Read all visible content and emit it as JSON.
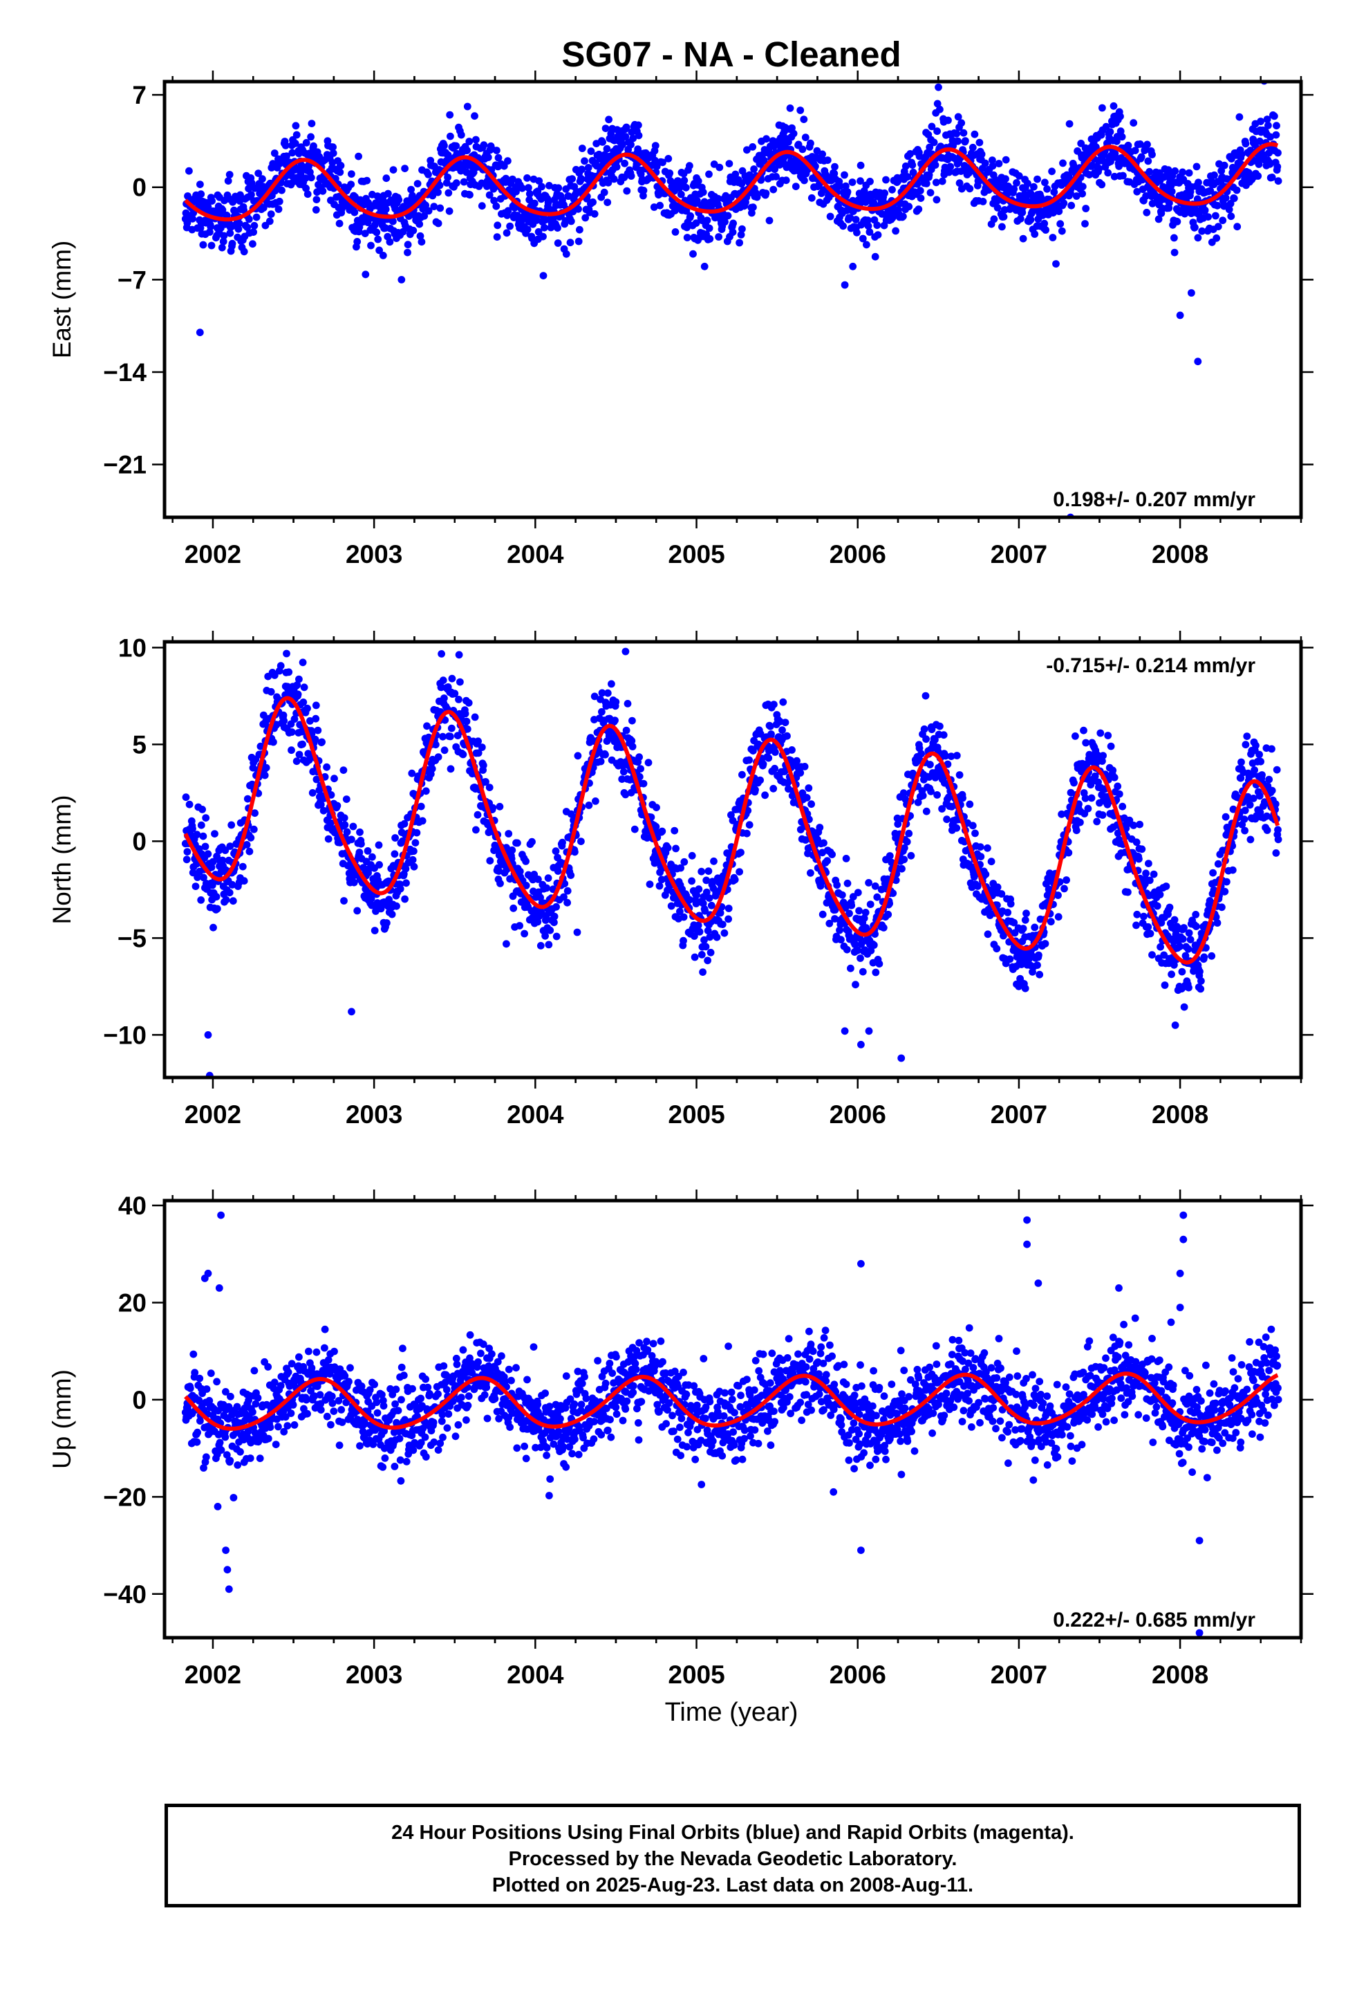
{
  "chart_data": {
    "type": "scatter",
    "title": "SG07  - NA - Cleaned",
    "xlabel": "Time (year)",
    "xlim": [
      2001.7,
      2008.75
    ],
    "xticks": [
      2002,
      2003,
      2004,
      2005,
      2006,
      2007,
      2008
    ],
    "series_colors": {
      "final_orbits": "#0000ff",
      "rapid_orbits": "#ff00ff",
      "model_fit": "#ff0000"
    },
    "data_span": [
      2001.83,
      2008.61
    ],
    "panels": [
      {
        "name": "east",
        "ylabel": "East (mm)",
        "ylim": [
          -25.0,
          8.0
        ],
        "yticks": [
          7,
          0,
          -7,
          -14,
          -21
        ],
        "rate_label": "0.198+/- 0.207 mm/yr",
        "rate_position": "bottom-right",
        "model": {
          "offset": 0.1,
          "trend": 0.198,
          "annual_amp": 2.2,
          "annual_peak": 0.57,
          "semiannual_amp": 0.3,
          "semiannual_peak": 0.55
        },
        "noise_sd": 1.3,
        "outliers": [
          [
            2001.92,
            -11.0
          ],
          [
            2003.17,
            -7.0
          ],
          [
            2004.05,
            -6.7
          ],
          [
            2005.05,
            -6.0
          ],
          [
            2005.92,
            -7.4
          ],
          [
            2005.97,
            -6.0
          ],
          [
            2007.23,
            -5.8
          ],
          [
            2007.32,
            -25.0
          ],
          [
            2008.0,
            -9.7
          ],
          [
            2008.07,
            -8.0
          ],
          [
            2008.11,
            -13.2
          ]
        ]
      },
      {
        "name": "north",
        "ylabel": "North (mm)",
        "ylim": [
          -12.2,
          10.3
        ],
        "yticks": [
          10,
          5,
          0,
          -5,
          -10
        ],
        "rate_label": "-0.715+/- 0.214 mm/yr",
        "rate_position": "top-right",
        "model": {
          "offset": 0.2,
          "trend": -0.715,
          "annual_amp": 4.7,
          "annual_peak": 0.49,
          "semiannual_amp": 0.7,
          "semiannual_peak": 0.42
        },
        "noise_sd": 1.1,
        "outliers": [
          [
            2001.97,
            -10.0
          ],
          [
            2001.98,
            -12.1
          ],
          [
            2002.86,
            -8.8
          ],
          [
            2003.82,
            -5.3
          ],
          [
            2004.26,
            -4.7
          ],
          [
            2004.56,
            9.8
          ],
          [
            2005.92,
            -9.8
          ],
          [
            2006.02,
            -10.5
          ],
          [
            2006.07,
            -9.8
          ],
          [
            2006.27,
            -11.2
          ],
          [
            2007.04,
            -7.6
          ],
          [
            2007.97,
            -9.5
          ]
        ]
      },
      {
        "name": "up",
        "ylabel": "Up (mm)",
        "ylim": [
          -49.0,
          41.0
        ],
        "yticks": [
          40,
          20,
          0,
          -20,
          -40
        ],
        "rate_label": "0.222+/- 0.685 mm/yr",
        "rate_position": "bottom-right",
        "model": {
          "offset": -0.7,
          "trend": 0.222,
          "annual_amp": 5.0,
          "annual_peak": 0.65,
          "semiannual_amp": 0.6,
          "semiannual_peak": 0.2
        },
        "noise_sd": 4.2,
        "outliers": [
          [
            2002.05,
            38.0
          ],
          [
            2001.95,
            25.0
          ],
          [
            2001.97,
            26.0
          ],
          [
            2002.04,
            23.0
          ],
          [
            2002.1,
            -39.0
          ],
          [
            2002.09,
            -35.0
          ],
          [
            2002.08,
            -31.0
          ],
          [
            2002.03,
            -22.0
          ],
          [
            2005.85,
            -19.0
          ],
          [
            2006.02,
            28.0
          ],
          [
            2006.02,
            -31.0
          ],
          [
            2007.05,
            37.0
          ],
          [
            2007.05,
            32.0
          ],
          [
            2007.12,
            24.0
          ],
          [
            2007.62,
            23.0
          ],
          [
            2008.02,
            38.0
          ],
          [
            2008.02,
            33.0
          ],
          [
            2008.0,
            26.0
          ],
          [
            2008.0,
            19.0
          ],
          [
            2008.12,
            -29.0
          ],
          [
            2008.12,
            -48.0
          ]
        ]
      }
    ]
  },
  "footer": {
    "line1": "24 Hour Positions Using Final Orbits (blue) and Rapid Orbits (magenta).",
    "line2": "Processed by the Nevada Geodetic Laboratory.",
    "line3": "Plotted on 2025-Aug-23. Last data on 2008-Aug-11."
  }
}
